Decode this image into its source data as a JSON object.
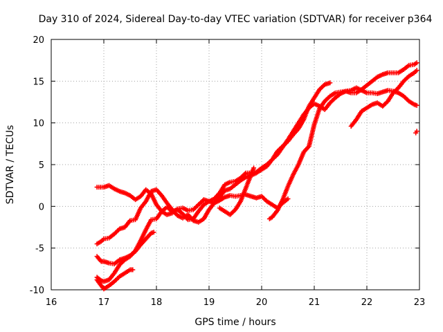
{
  "chart_data": {
    "type": "scatter",
    "title": "Day 310 of 2024, Sidereal Day-to-day VTEC variation (SDTVAR) for receiver p364",
    "xlabel": "GPS time / hours",
    "ylabel": "SDTVAR / TECUs",
    "xlim": [
      16,
      23
    ],
    "ylim": [
      -10,
      20
    ],
    "xticks": [
      "16",
      "17",
      "18",
      "19",
      "20",
      "21",
      "22",
      "23"
    ],
    "yticks": [
      "-10",
      "-5",
      "0",
      "5",
      "10",
      "15",
      "20"
    ],
    "grid": true,
    "marker": "+",
    "color": "#ff0000",
    "series": [
      {
        "points": [
          [
            16.87,
            2.3
          ],
          [
            17.0,
            2.3
          ],
          [
            17.1,
            2.5
          ],
          [
            17.2,
            2.1
          ],
          [
            17.3,
            1.8
          ],
          [
            17.4,
            1.6
          ],
          [
            17.5,
            1.3
          ],
          [
            17.6,
            0.8
          ],
          [
            17.7,
            1.2
          ],
          [
            17.8,
            2.0
          ],
          [
            17.9,
            1.5
          ],
          [
            18.0,
            0.2
          ],
          [
            18.1,
            -0.6
          ],
          [
            18.2,
            -1.0
          ],
          [
            18.3,
            -0.8
          ],
          [
            18.4,
            -0.3
          ],
          [
            18.5,
            -0.2
          ],
          [
            18.6,
            -0.5
          ],
          [
            18.7,
            -0.4
          ],
          [
            18.8,
            0.2
          ],
          [
            18.9,
            0.8
          ],
          [
            19.0,
            0.6
          ],
          [
            19.1,
            0.4
          ],
          [
            19.2,
            0.7
          ],
          [
            19.3,
            1.1
          ],
          [
            19.4,
            1.3
          ],
          [
            19.5,
            1.2
          ],
          [
            19.6,
            1.3
          ],
          [
            19.7,
            1.4
          ],
          [
            19.8,
            1.2
          ],
          [
            19.9,
            1.0
          ],
          [
            20.0,
            1.2
          ],
          [
            20.1,
            0.6
          ],
          [
            20.2,
            0.2
          ],
          [
            20.3,
            -0.2
          ],
          [
            20.4,
            0.4
          ],
          [
            20.5,
            0.9
          ]
        ]
      },
      {
        "points": [
          [
            16.87,
            -4.5
          ],
          [
            16.95,
            -4.2
          ],
          [
            17.0,
            -3.9
          ],
          [
            17.1,
            -3.8
          ],
          [
            17.2,
            -3.3
          ],
          [
            17.3,
            -2.7
          ],
          [
            17.4,
            -2.5
          ],
          [
            17.5,
            -1.7
          ],
          [
            17.6,
            -1.6
          ],
          [
            17.7,
            -0.2
          ],
          [
            17.8,
            0.6
          ],
          [
            17.9,
            1.8
          ],
          [
            18.0,
            2.0
          ],
          [
            18.1,
            1.3
          ],
          [
            18.2,
            0.4
          ],
          [
            18.3,
            -0.4
          ],
          [
            18.4,
            -1.1
          ],
          [
            18.5,
            -1.4
          ],
          [
            18.6,
            -1.0
          ],
          [
            18.7,
            -1.7
          ],
          [
            18.8,
            -1.9
          ],
          [
            18.9,
            -1.5
          ],
          [
            19.0,
            -0.4
          ],
          [
            19.1,
            0.4
          ],
          [
            19.2,
            1.1
          ],
          [
            19.3,
            1.9
          ],
          [
            19.4,
            2.1
          ],
          [
            19.5,
            2.6
          ],
          [
            19.6,
            3.1
          ],
          [
            19.7,
            3.5
          ],
          [
            19.8,
            3.7
          ],
          [
            19.9,
            4.0
          ],
          [
            20.0,
            4.4
          ],
          [
            20.1,
            4.8
          ],
          [
            20.2,
            5.6
          ],
          [
            20.3,
            6.2
          ],
          [
            20.4,
            7.1
          ],
          [
            20.5,
            8.0
          ],
          [
            20.6,
            9.0
          ],
          [
            20.7,
            10.0
          ],
          [
            20.8,
            11.0
          ],
          [
            20.9,
            11.8
          ],
          [
            21.0,
            12.3
          ],
          [
            21.1,
            12.0
          ],
          [
            21.2,
            11.6
          ],
          [
            21.3,
            12.4
          ],
          [
            21.4,
            13.0
          ],
          [
            21.5,
            13.5
          ],
          [
            21.6,
            13.8
          ],
          [
            21.7,
            13.9
          ],
          [
            21.8,
            14.2
          ],
          [
            21.9,
            13.9
          ],
          [
            22.0,
            13.6
          ],
          [
            22.1,
            13.6
          ],
          [
            22.2,
            13.5
          ],
          [
            22.3,
            13.7
          ],
          [
            22.4,
            13.9
          ],
          [
            22.5,
            13.8
          ],
          [
            22.6,
            13.6
          ],
          [
            22.7,
            13.2
          ],
          [
            22.8,
            12.6
          ],
          [
            22.9,
            12.2
          ],
          [
            22.95,
            12.1
          ]
        ]
      },
      {
        "points": [
          [
            16.87,
            -6.0
          ],
          [
            16.95,
            -6.6
          ],
          [
            17.0,
            -6.6
          ],
          [
            17.1,
            -6.8
          ],
          [
            17.2,
            -6.9
          ],
          [
            17.3,
            -6.4
          ],
          [
            17.4,
            -6.2
          ],
          [
            17.5,
            -5.9
          ],
          [
            17.6,
            -5.4
          ],
          [
            17.7,
            -4.6
          ],
          [
            17.8,
            -3.9
          ],
          [
            17.9,
            -3.2
          ],
          [
            17.95,
            -3.1
          ]
        ]
      },
      {
        "points": [
          [
            16.87,
            -8.5
          ],
          [
            16.95,
            -8.9
          ],
          [
            17.0,
            -9.0
          ],
          [
            17.1,
            -8.8
          ],
          [
            17.2,
            -8.0
          ],
          [
            17.3,
            -7.0
          ],
          [
            17.4,
            -6.4
          ],
          [
            17.5,
            -6.0
          ],
          [
            17.6,
            -5.3
          ],
          [
            17.7,
            -4.1
          ],
          [
            17.8,
            -2.8
          ],
          [
            17.9,
            -1.6
          ],
          [
            18.0,
            -1.5
          ],
          [
            18.1,
            -0.6
          ],
          [
            18.2,
            -0.1
          ],
          [
            18.3,
            -0.6
          ],
          [
            18.4,
            -0.4
          ],
          [
            18.5,
            -0.9
          ],
          [
            18.6,
            -1.6
          ],
          [
            18.7,
            -1.5
          ],
          [
            18.8,
            -0.6
          ],
          [
            18.9,
            0.2
          ],
          [
            19.0,
            0.6
          ],
          [
            19.1,
            0.9
          ],
          [
            19.2,
            1.6
          ],
          [
            19.3,
            2.6
          ],
          [
            19.4,
            2.9
          ],
          [
            19.5,
            3.0
          ],
          [
            19.6,
            3.4
          ],
          [
            19.7,
            4.0
          ],
          [
            19.8,
            4.0
          ],
          [
            19.9,
            4.1
          ],
          [
            20.0,
            4.6
          ],
          [
            20.1,
            5.0
          ],
          [
            20.2,
            5.6
          ],
          [
            20.3,
            6.6
          ],
          [
            20.4,
            7.2
          ],
          [
            20.5,
            7.8
          ],
          [
            20.6,
            8.6
          ],
          [
            20.7,
            9.3
          ],
          [
            20.8,
            10.4
          ],
          [
            20.9,
            12.0
          ],
          [
            21.0,
            13.0
          ],
          [
            21.1,
            14.0
          ],
          [
            21.2,
            14.6
          ],
          [
            21.3,
            14.8
          ]
        ]
      },
      {
        "points": [
          [
            16.87,
            -8.8
          ],
          [
            16.95,
            -9.5
          ],
          [
            17.0,
            -9.9
          ],
          [
            17.1,
            -9.5
          ],
          [
            17.2,
            -9.0
          ],
          [
            17.3,
            -8.4
          ],
          [
            17.4,
            -8.0
          ],
          [
            17.5,
            -7.6
          ],
          [
            17.55,
            -7.6
          ]
        ]
      },
      {
        "points": [
          [
            19.2,
            -0.2
          ],
          [
            19.3,
            -0.6
          ],
          [
            19.4,
            -1.0
          ],
          [
            19.5,
            -0.4
          ],
          [
            19.6,
            0.6
          ],
          [
            19.7,
            2.2
          ],
          [
            19.8,
            3.8
          ],
          [
            19.85,
            4.6
          ]
        ]
      },
      {
        "points": [
          [
            20.15,
            -1.5
          ],
          [
            20.2,
            -1.3
          ],
          [
            20.3,
            -0.5
          ],
          [
            20.4,
            0.8
          ],
          [
            20.5,
            2.4
          ],
          [
            20.6,
            3.8
          ],
          [
            20.7,
            5.0
          ],
          [
            20.8,
            6.5
          ],
          [
            20.9,
            7.2
          ],
          [
            21.0,
            9.8
          ],
          [
            21.1,
            11.7
          ],
          [
            21.2,
            12.6
          ],
          [
            21.3,
            13.2
          ],
          [
            21.4,
            13.6
          ],
          [
            21.5,
            13.7
          ],
          [
            21.6,
            13.8
          ],
          [
            21.7,
            13.6
          ],
          [
            21.8,
            13.6
          ],
          [
            21.9,
            14.0
          ],
          [
            22.0,
            14.5
          ],
          [
            22.1,
            15.0
          ],
          [
            22.2,
            15.5
          ],
          [
            22.3,
            15.8
          ],
          [
            22.4,
            16.0
          ],
          [
            22.5,
            16.0
          ],
          [
            22.6,
            16.0
          ],
          [
            22.7,
            16.4
          ],
          [
            22.8,
            16.9
          ],
          [
            22.9,
            17.0
          ],
          [
            22.95,
            17.2
          ]
        ]
      },
      {
        "points": [
          [
            21.7,
            9.6
          ],
          [
            21.8,
            10.4
          ],
          [
            21.9,
            11.4
          ],
          [
            22.0,
            11.8
          ],
          [
            22.1,
            12.2
          ],
          [
            22.2,
            12.4
          ],
          [
            22.3,
            12.0
          ],
          [
            22.4,
            12.6
          ],
          [
            22.5,
            13.6
          ],
          [
            22.6,
            14.2
          ],
          [
            22.7,
            15.0
          ],
          [
            22.8,
            15.6
          ],
          [
            22.9,
            16.0
          ],
          [
            22.95,
            16.3
          ]
        ]
      },
      {
        "points": [
          [
            22.93,
            8.8
          ],
          [
            22.95,
            9.0
          ]
        ]
      }
    ]
  }
}
